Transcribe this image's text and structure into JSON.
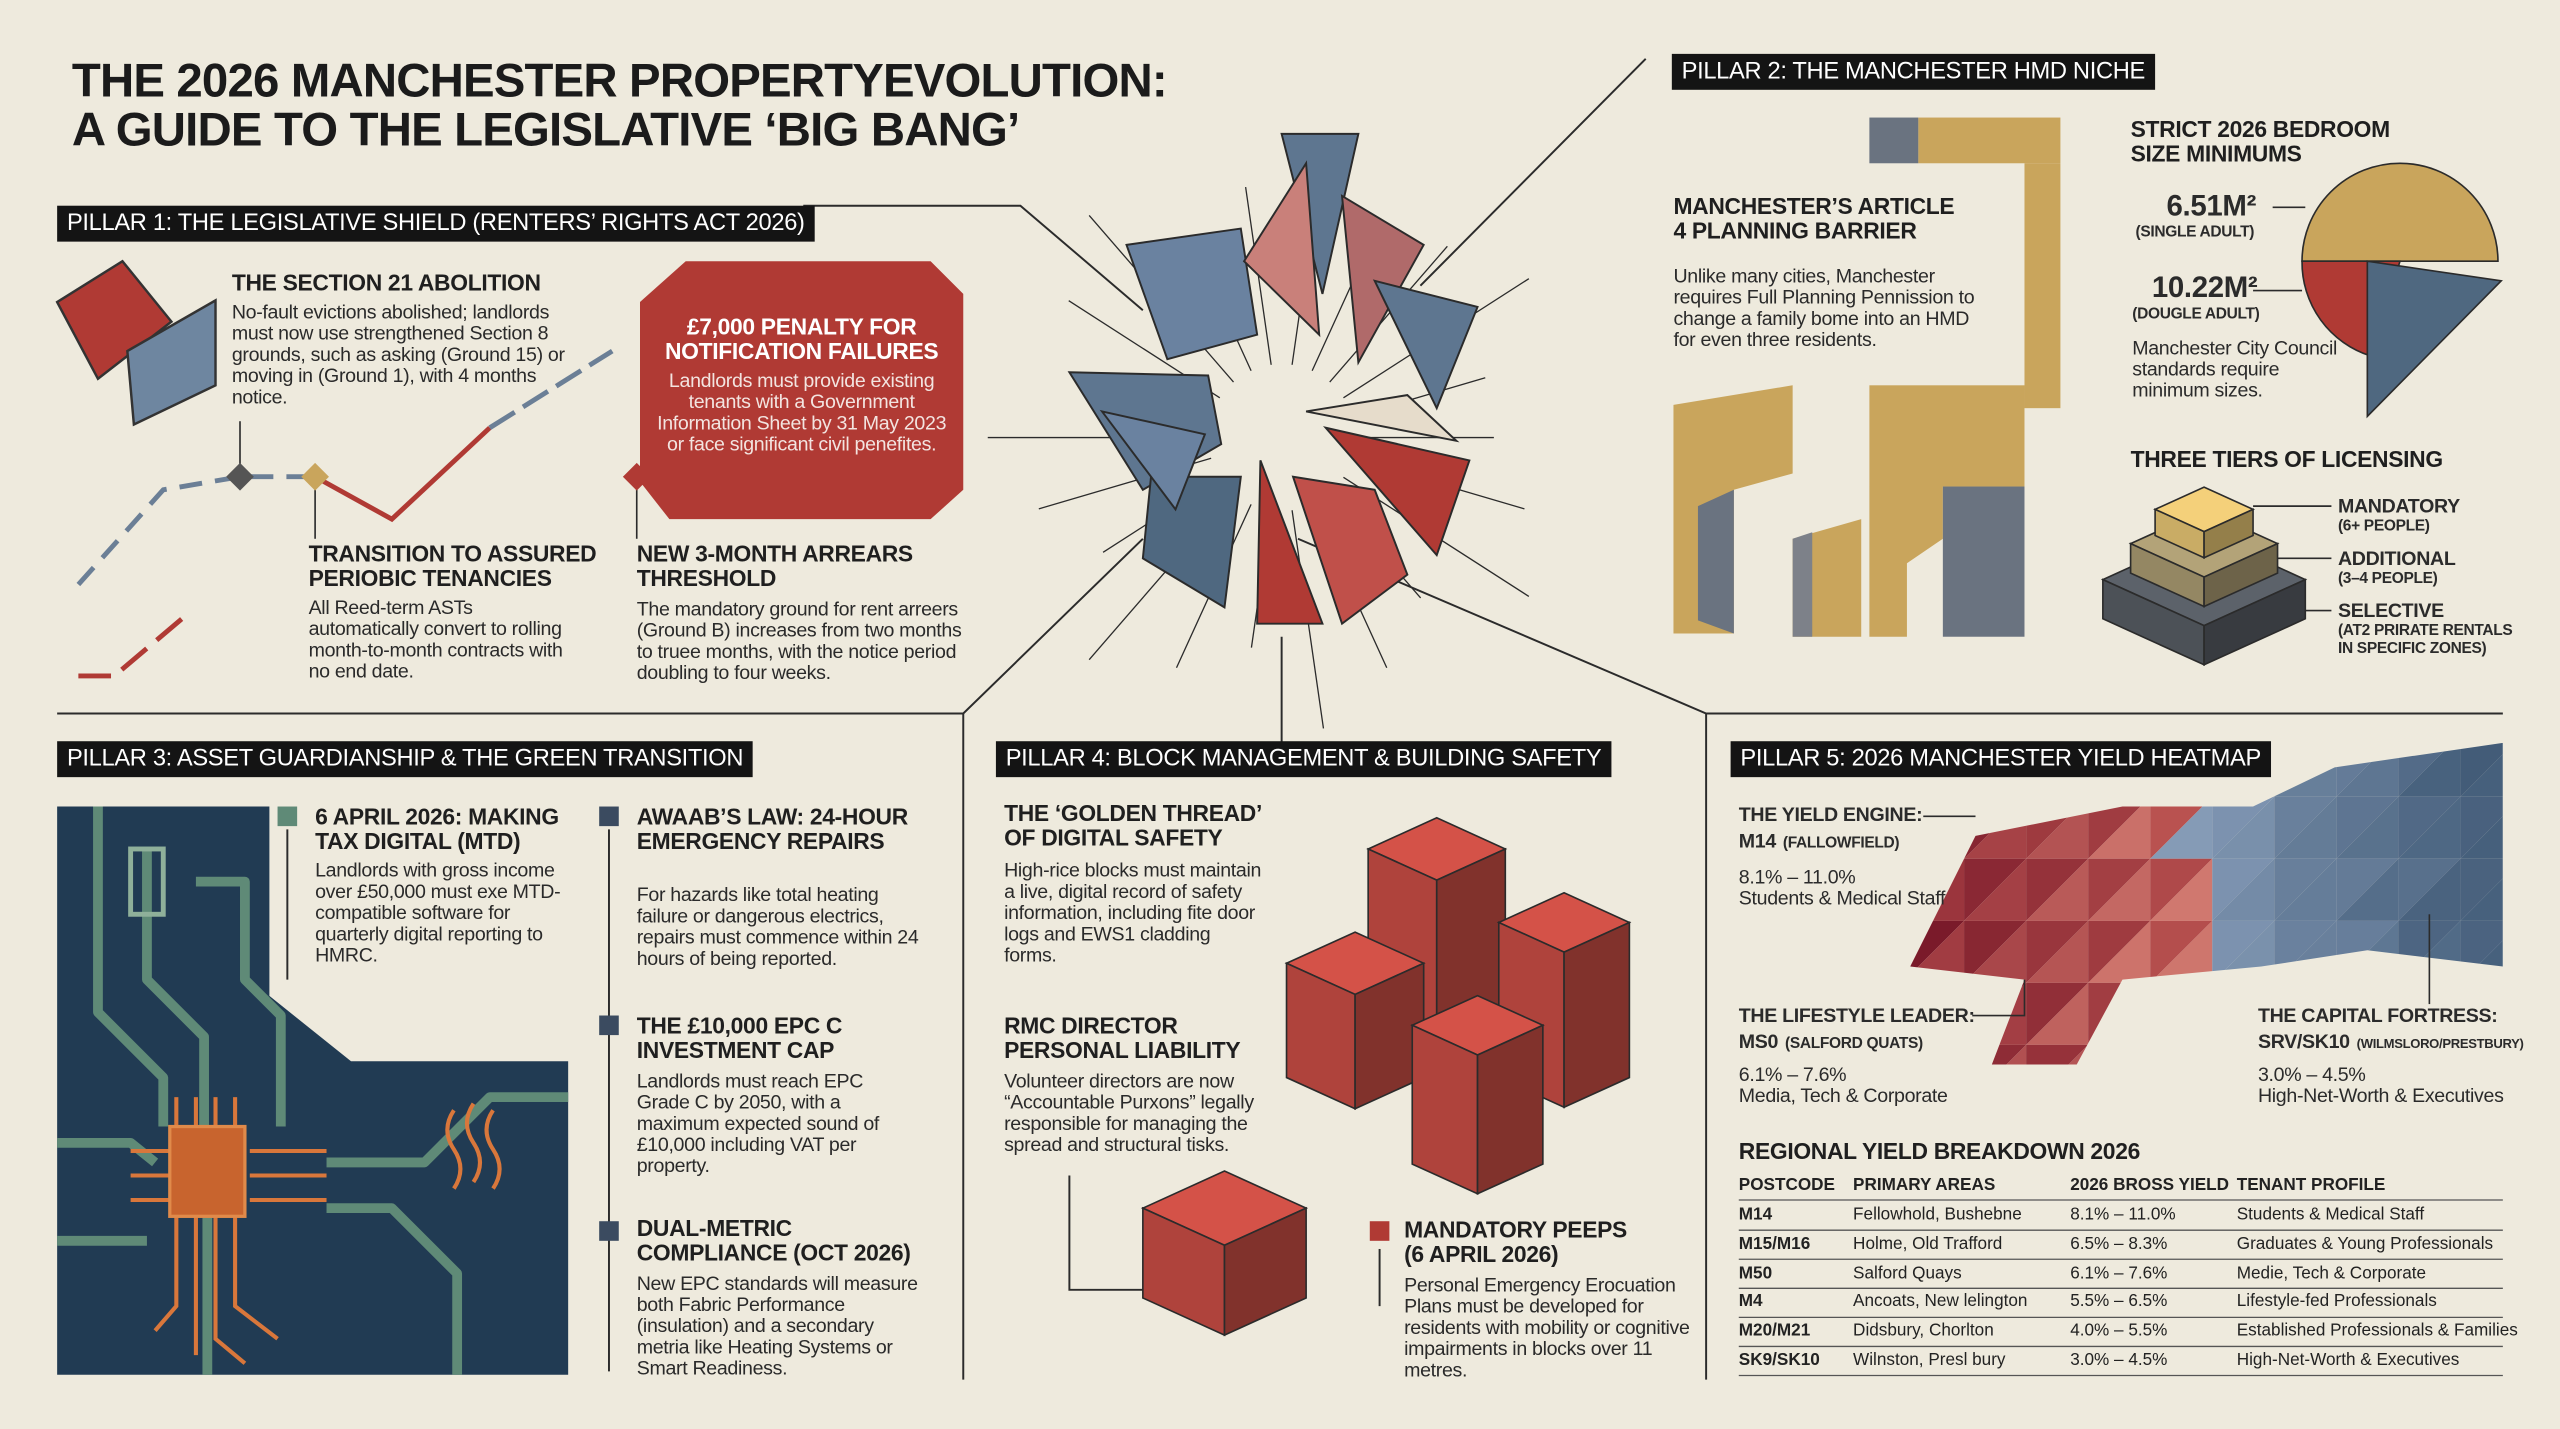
{
  "title": [
    "THE 2026 MANCHESTER PROPERTYEVOLUTION:",
    "A GUIDE TO THE LEGISLATIVE ‘BIG BANG’"
  ],
  "pillar1": {
    "header": "PILLAR 1: THE LEGISLATIVE SHIELD (RENTERS’ RIGHTS ACT 2026)",
    "section21": {
      "heading": "THE SECTION 21 ABOLITION",
      "body": "No-fault evictions abolished; landlords must now use strengthened Section 8 grounds, such as asking (Ground 15) or moving in (Ground 1), with 4 months notice."
    },
    "penalty": {
      "heading": "£7,000 PENALTY FOR NOTIFICATION FAILURES",
      "body": "Landlords must provide existing tenants with a Government Information Sheet by 31 May 2023 or face significant civil penefites."
    },
    "transition": {
      "heading": "TRANSITION TO ASSURED PERIOBIC TENANCIES",
      "body": "All Reed-term ASTs automatically convert to rolling month-to-month contracts with no end date."
    },
    "arrears": {
      "heading": "NEW 3-MONTH ARREARS THRESHOLD",
      "body": "The mandatory ground for rent arreers (Ground B) increases from two months to truee months, with the notice period doubling to four weeks."
    }
  },
  "pillar2": {
    "header": "PILLAR 2: THE MANCHESTER HMD NICHE",
    "article4": {
      "heading": "MANCHESTER’S ARTICLE 4 PLANNING BARRIER",
      "body": "Unlike many cities, Manchester requires Full Planning Pennission to change a family bome into an HMD for even three residents."
    },
    "bedroom": {
      "heading": "STRICT 2026 BEDROOM SIZE MINIMUMS",
      "single": {
        "size": "6.51M²",
        "label": "(SINGLE ADULT)"
      },
      "double": {
        "size": "10.22M²",
        "label": "(DOUGLE ADULT)"
      },
      "note": "Manchester City Council standards require minimum sizes."
    },
    "licensing": {
      "heading": "THREE TIERS OF LICENSING",
      "tiers": [
        {
          "name": "MANDATORY",
          "detail": "(6+ PEOPLE)"
        },
        {
          "name": "ADDITIONAL",
          "detail": "(3–4 PEOPLE)"
        },
        {
          "name": "SELECTIVE",
          "detail": "(AT2 PRIRATE RENTALS IN SPECIFIC ZONES)"
        }
      ]
    }
  },
  "pillar3": {
    "header": "PILLAR 3: ASSET GUARDIANSHIP & THE GREEN TRANSITION",
    "items": [
      {
        "heading": "6 APRIL 2026: MAKING TAX DIGITAL (MTD)",
        "body": "Landlords with gross income over £50,000 must exe MTD-compatible software for quarterly digital reporting to HMRC."
      },
      {
        "heading": "AWAAB’S LAW: 24-HOUR EMERGENCY REPAIRS",
        "body": "For hazards like total heating failure or dangerous electrics, repairs must commence within 24 hours of being reported."
      },
      {
        "heading": "THE £10,000 EPC C INVESTMENT CAP",
        "body": "Landlords must reach EPC Grade C by 2050, with a maximum expected sound of £10,000 including VAT per property."
      },
      {
        "heading": "DUAL-METRIC COMPLIANCE (OCT 2026)",
        "body": "New EPC standards will measure both Fabric Performance (insulation) and a secondary metria like Heating Systems or Smart Readiness."
      }
    ]
  },
  "pillar4": {
    "header": "PILLAR 4: BLOCK MANAGEMENT & BUILDING SAFETY",
    "items": [
      {
        "heading": "THE ‘GOLDEN THREAD’ OF DIGITAL SAFETY",
        "body": "High-rice blocks must maintain a live, digital record of safety information, including fite door logs and EWS1 cladding forms."
      },
      {
        "heading": "RMC DIRECTOR PERSONAL LIABILITY",
        "body": "Volunteer directors are now “Accountable Purxons” legally responsible for managing the spread and structural tisks."
      },
      {
        "heading": "MANDATORY PEEPs (6 APRIL 2026)",
        "body": "Personal Emergency Erocuation Plans must be developed for residents with mobility or cognitive impairments in blocks over 11 metres."
      }
    ]
  },
  "pillar5": {
    "header": "PILLAR 5: 2026 MANCHESTER YIELD HEATMAP",
    "callouts": [
      {
        "label": "THE YIELD ENGINE:",
        "postcode": "M14",
        "area": "(FALLOWFIELD)",
        "range": "8.1% – 11.0%",
        "profile": "Students & Medical Staff"
      },
      {
        "label": "THE LIFESTYLE LEADER:",
        "postcode": "MS0",
        "area": "(SALFORD QUATS)",
        "range": "6.1% – 7.6%",
        "profile": "Media, Tech & Corporate"
      },
      {
        "label": "THE CAPITAL FORTRESS:",
        "postcode": "SRV/SK10",
        "area": "(WILMSLORO/PRESTBURY)",
        "range": "3.0% – 4.5%",
        "profile": "High-Net-Worth & Executives"
      }
    ],
    "table": {
      "title": "REGIONAL YIELD BREAKDOWN 2026",
      "columns": [
        "POSTCODE",
        "PRIMARY AREAS",
        "2026 BROSS YIELD",
        "TENANT PROFILE"
      ],
      "rows": [
        [
          "M14",
          "Fellowhold, Bushebne",
          "8.1% – 11.0%",
          "Students & Medical Staff"
        ],
        [
          "M15/M16",
          "Holme, Old Trafford",
          "6.5% – 8.3%",
          "Graduates & Young Professionals"
        ],
        [
          "M50",
          "Salford Quays",
          "6.1% – 7.6%",
          "Medie, Tech & Corporate"
        ],
        [
          "M4",
          "Ancoats, New lelington",
          "5.5% – 6.5%",
          "Lifestyle-fed Professionals"
        ],
        [
          "M20/M21",
          "Didsbury, Chorlton",
          "4.0% – 5.5%",
          "Established Professionals & Families"
        ],
        [
          "SK9/SK10",
          "Wilnston, Presl bury",
          "3.0% – 4.5%",
          "High-Net-Worth & Executives"
        ]
      ]
    }
  }
}
